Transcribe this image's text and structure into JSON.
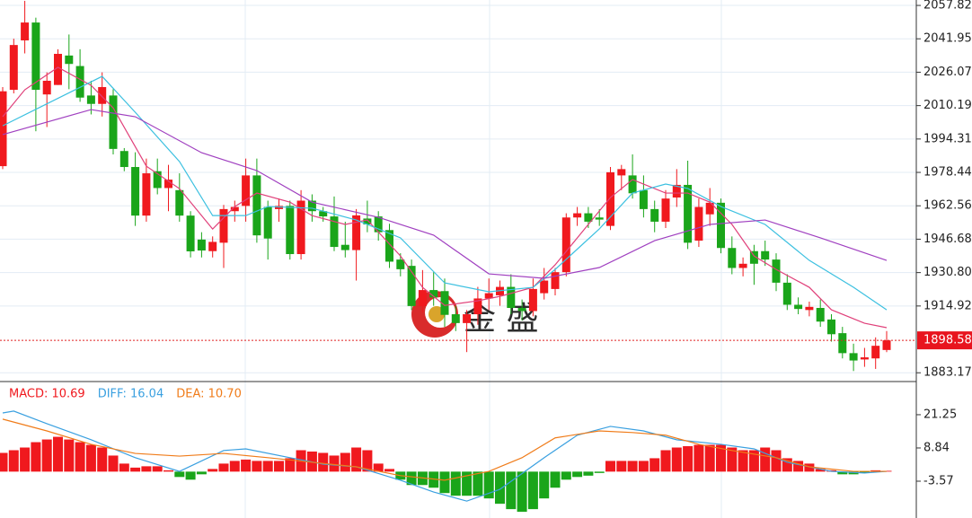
{
  "chart_data": [
    {
      "type": "candlestick",
      "up_color": "#f0191e",
      "down_color": "#1aa51a",
      "open": [
        1981.4,
        2017.7,
        2041.2,
        2049.7,
        2015.5,
        2020,
        2034,
        2029,
        2015,
        2011,
        2015,
        1988.6,
        1981,
        1957.9,
        1979,
        1971,
        1970,
        1957.9,
        1946.5,
        1941,
        1945,
        1960,
        1962.5,
        1977,
        1962,
        1961,
        1962.5,
        1939.6,
        1965,
        1960,
        1957.5,
        1944,
        1941.5,
        1956.5,
        1957.5,
        1951,
        1937,
        1934,
        1914.9,
        1922.5,
        1922,
        1911,
        1906.8,
        1911,
        1918.5,
        1920,
        1924,
        1914,
        1912.5,
        1921,
        1923,
        1931,
        1957,
        1959,
        1957,
        1953,
        1977,
        1977,
        1970,
        1961,
        1955,
        1966.5,
        1972.5,
        1946,
        1958.5,
        1964,
        1942.5,
        1933,
        1941,
        1941,
        1937,
        1926,
        1915.5,
        1913,
        1914,
        1908.5,
        1902,
        1892.5,
        1889.5,
        1890,
        1894
      ],
      "high": [
        2019,
        2042,
        2060,
        2052,
        2026,
        2037,
        2044,
        2037,
        2022,
        2026,
        2018,
        1990,
        1988,
        1985,
        1985,
        1982,
        1978,
        1960,
        1950,
        1948,
        1963,
        1965,
        1985,
        1985,
        1965,
        1966,
        1965,
        1970,
        1968,
        1962,
        1967,
        1955,
        1961,
        1965,
        1960,
        1954,
        1940,
        1937,
        1932,
        1931,
        1928,
        1915,
        1913,
        1924,
        1928,
        1927,
        1930,
        1918,
        1928,
        1933,
        1933,
        1959,
        1962,
        1962,
        1961,
        1981,
        1982,
        1987,
        1977,
        1965,
        1970,
        1980,
        1984,
        1966,
        1971,
        1966,
        1948,
        1938,
        1944,
        1946,
        1940,
        1930,
        1919,
        1917,
        1918,
        1911,
        1905,
        1897,
        1895,
        1900,
        1903
      ],
      "low": [
        1980,
        2016,
        2035,
        1998,
        2000,
        2020,
        2018,
        2012,
        2006,
        2005,
        1987,
        1979,
        1953,
        1955,
        1968,
        1960,
        1955,
        1938,
        1938,
        1938,
        1933,
        1955,
        1955,
        1945,
        1937,
        1955,
        1937,
        1937,
        1955,
        1955,
        1941,
        1938,
        1927,
        1950,
        1946,
        1933,
        1929,
        1913,
        1912,
        1915,
        1905,
        1903,
        1893,
        1906,
        1913,
        1915,
        1911,
        1908,
        1910,
        1918,
        1920,
        1929,
        1953,
        1952,
        1953,
        1951,
        1970,
        1966,
        1957,
        1950,
        1952,
        1962,
        1942,
        1943,
        1953,
        1940,
        1930,
        1929,
        1925,
        1934,
        1922,
        1913,
        1911,
        1910,
        1905,
        1898,
        1890,
        1884,
        1886,
        1885,
        1893
      ],
      "close": [
        2017,
        2039,
        2049.7,
        2017.7,
        2022,
        2034.8,
        2030,
        2014,
        2011,
        2019,
        1989.6,
        1981,
        1957.9,
        1978,
        1971,
        1975,
        1957.9,
        1940.9,
        1941.3,
        1945.4,
        1961,
        1962,
        1977,
        1948.5,
        1947,
        1962.5,
        1939.6,
        1965,
        1960,
        1957.5,
        1943,
        1941.5,
        1958,
        1953.7,
        1950,
        1936,
        1932.4,
        1914.9,
        1922.5,
        1919,
        1910.7,
        1906.8,
        1911,
        1918.5,
        1921,
        1924,
        1914,
        1912.5,
        1923,
        1927,
        1931,
        1957,
        1959,
        1955,
        1956,
        1978.5,
        1980,
        1968.5,
        1961,
        1955,
        1966,
        1972.5,
        1945,
        1962,
        1964,
        1942.5,
        1933,
        1935,
        1935,
        1937,
        1926,
        1915.5,
        1913.5,
        1914.5,
        1907.5,
        1901.5,
        1892.5,
        1889,
        1890.5,
        1896,
        1898.58
      ],
      "series": [
        {
          "color": "#e0407a",
          "x": [
            0,
            2,
            5,
            8,
            10,
            13,
            16,
            19,
            21,
            23,
            26,
            28,
            31,
            33,
            36,
            38,
            40,
            43,
            45,
            48,
            50,
            52,
            55,
            57,
            60,
            62,
            64,
            66,
            68,
            70,
            73,
            75,
            78,
            80
          ],
          "values": [
            2004.9,
            2017.7,
            2028.4,
            2019.8,
            2009.1,
            1981.4,
            1970.7,
            1951.5,
            1962.2,
            1968.6,
            1964.3,
            1957.9,
            1953.7,
            1955.8,
            1938.7,
            1923.8,
            1915.2,
            1917.4,
            1919.5,
            1923.8,
            1934.5,
            1947.3,
            1966.5,
            1975.0,
            1968.6,
            1968.6,
            1964.3,
            1953.7,
            1938.7,
            1932.3,
            1923.8,
            1913.1,
            1906.7,
            1904.6
          ]
        },
        {
          "color": "#3cc0e0",
          "x": [
            0,
            9,
            12,
            16,
            19,
            22,
            24,
            28,
            32,
            36,
            40,
            44,
            48,
            50,
            54,
            57,
            60,
            62,
            65,
            69,
            73,
            77,
            80
          ],
          "values": [
            2000.6,
            2024.1,
            2007.0,
            1983.6,
            1957.9,
            1957.9,
            1962.2,
            1961.4,
            1955.8,
            1947.3,
            1925.9,
            1921.7,
            1923.8,
            1932.3,
            1951.6,
            1968.6,
            1972.9,
            1970.8,
            1962.2,
            1953.7,
            1936.6,
            1923.8,
            1913.1
          ]
        },
        {
          "color": "#a040c0",
          "x": [
            0,
            8,
            12,
            18,
            23,
            28,
            34,
            39,
            44,
            49,
            54,
            59,
            64,
            69,
            74,
            80
          ],
          "values": [
            1996.4,
            2008.3,
            2004.9,
            1987.8,
            1979.3,
            1964.3,
            1957.1,
            1948.6,
            1930.2,
            1928.1,
            1933.2,
            1946.0,
            1953.7,
            1955.8,
            1947.3,
            1936.6
          ]
        }
      ],
      "ylim": [
        1879.0,
        2060.4
      ],
      "yticks": [
        2057.82,
        2041.95,
        2026.07,
        2010.19,
        1994.31,
        1978.44,
        1962.56,
        1946.68,
        {
          "value": 1930.8,
          "label": "1930.80"
        },
        1914.92,
        1883.17
      ],
      "last_price": 1898.58,
      "watermark": "金 盛"
    },
    {
      "type": "macd",
      "series": [
        {
          "name": "MACD: 10.69",
          "color": "#f0191e",
          "neg_color": "#1aa51a",
          "values": [
            7,
            8,
            9,
            11,
            12,
            13,
            12,
            11,
            10,
            9,
            6,
            3,
            1.5,
            2,
            2,
            0.5,
            -2,
            -3,
            -1,
            1,
            3,
            4,
            4.5,
            4,
            4,
            4,
            5,
            8,
            7.5,
            7,
            6,
            7,
            9,
            8,
            3,
            1,
            -3,
            -5,
            -5,
            -6,
            -8,
            -9,
            -9,
            -9,
            -10,
            -12,
            -14,
            -15,
            -14,
            -10,
            -6,
            -3,
            -2,
            -1.5,
            -0.5,
            4,
            4,
            4,
            4,
            5,
            8,
            9,
            9.5,
            10,
            10,
            10,
            9,
            8,
            8,
            9,
            8,
            5,
            4,
            3,
            1,
            0.5,
            -1,
            -1,
            -0.5,
            0.5,
            0.3
          ]
        },
        {
          "name": "DIFF: 16.04",
          "color": "#3aa0e0",
          "x": [
            0,
            1,
            4,
            8,
            12,
            16,
            20,
            22,
            26,
            29,
            32,
            36,
            39,
            42,
            45,
            49,
            52,
            55,
            58,
            61,
            65,
            68,
            71,
            75,
            78,
            80
          ],
          "values": [
            21.9,
            22.6,
            17.9,
            11.9,
            5.2,
            0.1,
            7.9,
            8.5,
            5.2,
            2.8,
            1.8,
            -3.2,
            -7.6,
            -11.0,
            -6.6,
            5.2,
            13.6,
            16.9,
            15.2,
            11.9,
            10.2,
            8.5,
            3.5,
            0.1,
            -0.5,
            0.1
          ]
        },
        {
          "name": "DEA: 10.70",
          "color": "#f07c1a",
          "x": [
            0,
            4,
            8,
            12,
            16,
            20,
            24,
            28,
            32,
            36,
            40,
            44,
            47,
            50,
            54,
            57,
            60,
            63,
            66,
            70,
            73,
            77,
            80
          ],
          "values": [
            19.6,
            15.2,
            10.2,
            6.8,
            5.8,
            6.8,
            5.2,
            3.5,
            1.8,
            -1.5,
            -3.2,
            0.1,
            5.2,
            12.6,
            15.2,
            14.6,
            13.6,
            10.2,
            7.9,
            5.2,
            1.8,
            0.1,
            0.1
          ]
        }
      ],
      "ylim": [
        -15.3,
        33.3
      ],
      "yticks": [
        21.25,
        8.84,
        -3.57
      ]
    }
  ]
}
